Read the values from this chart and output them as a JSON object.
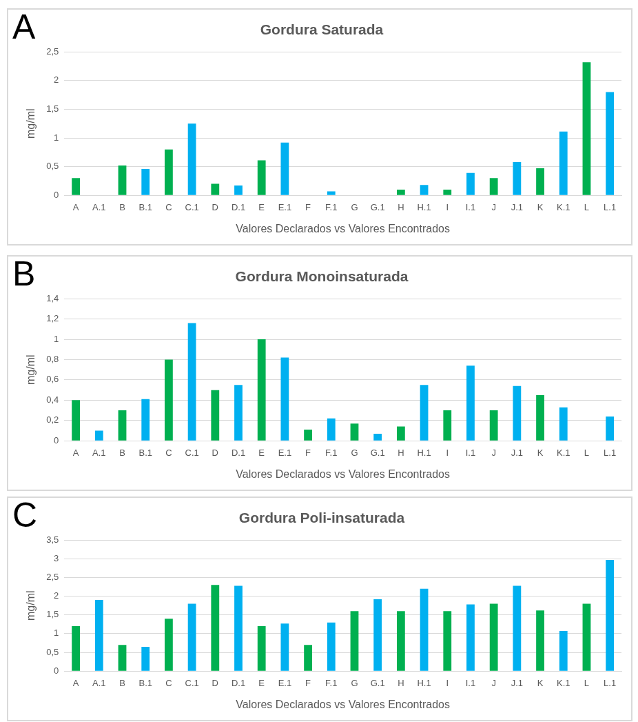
{
  "chart_data": [
    {
      "type": "bar",
      "title": "Gordura Saturada",
      "xlabel": "Valores Declarados vs Valores Encontrados",
      "ylabel": "mg/ml",
      "annotations": [
        "A"
      ],
      "grid": "y",
      "categories": [
        "A",
        "A.1",
        "B",
        "B.1",
        "C",
        "C.1",
        "D",
        "D.1",
        "E",
        "E.1",
        "F",
        "F.1",
        "G",
        "G.1",
        "H",
        "H.1",
        "I",
        "I.1",
        "J",
        "J.1",
        "K",
        "K.1",
        "L",
        "L.1"
      ],
      "values": [
        0.3,
        0,
        0.52,
        0.46,
        0.8,
        1.25,
        0.2,
        0.17,
        0.61,
        0.92,
        0,
        0.07,
        0,
        0,
        0.1,
        0.18,
        0.1,
        0.39,
        0.3,
        0.58,
        0.47,
        1.11,
        2.32,
        1.8
      ],
      "colors": [
        "#00b050",
        "#00b0f0",
        "#00b050",
        "#00b0f0",
        "#00b050",
        "#00b0f0",
        "#00b050",
        "#00b0f0",
        "#00b050",
        "#00b0f0",
        "#00b050",
        "#00b0f0",
        "#00b050",
        "#00b0f0",
        "#00b050",
        "#00b0f0",
        "#00b050",
        "#00b0f0",
        "#00b050",
        "#00b0f0",
        "#00b050",
        "#00b0f0",
        "#00b050",
        "#00b0f0"
      ],
      "ylim": [
        0,
        2.5
      ],
      "yticks": [
        0,
        {
          "value": 0.5,
          "label": "0,5"
        },
        1,
        {
          "value": 1.5,
          "label": "1,5"
        },
        2,
        {
          "value": 2.5,
          "label": "2,5"
        }
      ]
    },
    {
      "type": "bar",
      "title": "Gordura Monoinsaturada",
      "xlabel": "Valores Declarados vs Valores Encontrados",
      "ylabel": "mg/ml",
      "annotations": [
        "B"
      ],
      "grid": "y",
      "categories": [
        "A",
        "A.1",
        "B",
        "B.1",
        "C",
        "C.1",
        "D",
        "D.1",
        "E",
        "E.1",
        "F",
        "F.1",
        "G",
        "G.1",
        "H",
        "H.1",
        "I",
        "I.1",
        "J",
        "J.1",
        "K",
        "K.1",
        "L",
        "L.1"
      ],
      "values": [
        0.4,
        0.1,
        0.3,
        0.41,
        0.8,
        1.16,
        0.5,
        0.55,
        1.0,
        0.82,
        0.11,
        0.22,
        0.17,
        0.07,
        0.14,
        0.55,
        0.3,
        0.74,
        0.3,
        0.54,
        0.45,
        0.33,
        0,
        0.24
      ],
      "colors": [
        "#00b050",
        "#00b0f0",
        "#00b050",
        "#00b0f0",
        "#00b050",
        "#00b0f0",
        "#00b050",
        "#00b0f0",
        "#00b050",
        "#00b0f0",
        "#00b050",
        "#00b0f0",
        "#00b050",
        "#00b0f0",
        "#00b050",
        "#00b0f0",
        "#00b050",
        "#00b0f0",
        "#00b050",
        "#00b0f0",
        "#00b050",
        "#00b0f0",
        "#00b050",
        "#00b0f0"
      ],
      "ylim": [
        0,
        1.4
      ],
      "yticks": [
        0,
        {
          "value": 0.2,
          "label": "0,2"
        },
        {
          "value": 0.4,
          "label": "0,4"
        },
        {
          "value": 0.6,
          "label": "0,6"
        },
        {
          "value": 0.8,
          "label": "0,8"
        },
        1,
        {
          "value": 1.2,
          "label": "1,2"
        },
        {
          "value": 1.4,
          "label": "1,4"
        }
      ]
    },
    {
      "type": "bar",
      "title": "Gordura Poli-insaturada",
      "xlabel": "Valores Declarados vs Valores Encontrados",
      "ylabel": "mg/ml",
      "annotations": [
        "C"
      ],
      "grid": "y",
      "categories": [
        "A",
        "A.1",
        "B",
        "B.1",
        "C",
        "C.1",
        "D",
        "D.1",
        "E",
        "E.1",
        "F",
        "F.1",
        "G",
        "G.1",
        "H",
        "H.1",
        "I",
        "I.1",
        "J",
        "J.1",
        "K",
        "K.1",
        "L",
        "L.1"
      ],
      "values": [
        1.2,
        1.9,
        0.7,
        0.65,
        1.4,
        1.8,
        2.3,
        2.28,
        1.2,
        1.27,
        0.7,
        1.3,
        1.6,
        1.92,
        1.6,
        2.2,
        1.6,
        1.78,
        1.8,
        2.28,
        1.62,
        1.07,
        1.8,
        2.97
      ],
      "colors": [
        "#00b050",
        "#00b0f0",
        "#00b050",
        "#00b0f0",
        "#00b050",
        "#00b0f0",
        "#00b050",
        "#00b0f0",
        "#00b050",
        "#00b0f0",
        "#00b050",
        "#00b0f0",
        "#00b050",
        "#00b0f0",
        "#00b050",
        "#00b0f0",
        "#00b050",
        "#00b0f0",
        "#00b050",
        "#00b0f0",
        "#00b050",
        "#00b0f0",
        "#00b050",
        "#00b0f0"
      ],
      "ylim": [
        0,
        3.5
      ],
      "yticks": [
        0,
        {
          "value": 0.5,
          "label": "0,5"
        },
        1,
        {
          "value": 1.5,
          "label": "1,5"
        },
        2,
        {
          "value": 2.5,
          "label": "2,5"
        },
        3,
        {
          "value": 3.5,
          "label": "3,5"
        }
      ]
    }
  ]
}
